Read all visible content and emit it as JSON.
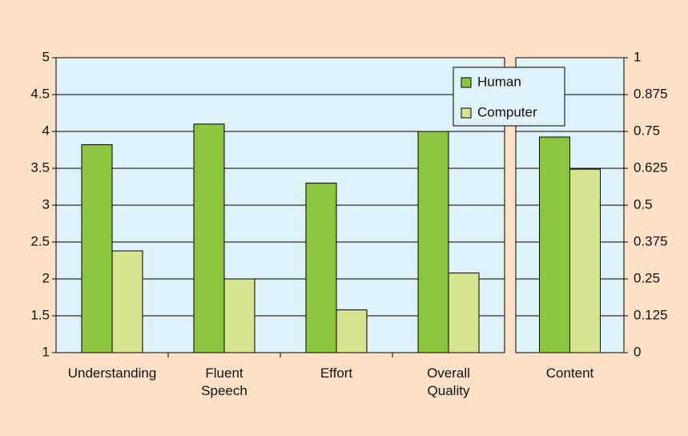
{
  "chart_data": {
    "type": "bar",
    "categories": [
      "Understanding",
      "Fluent Speech",
      "Effort",
      "Overall Quality"
    ],
    "series": [
      {
        "name": "Human",
        "color": "#8cc63f",
        "values": [
          3.82,
          4.1,
          3.3,
          4.0
        ]
      },
      {
        "name": "Computer",
        "color": "#d4e48f",
        "values": [
          2.38,
          2.0,
          1.58,
          2.08
        ]
      }
    ],
    "ylim": [
      1,
      5
    ],
    "yticks": [
      1,
      1.5,
      2,
      2.5,
      3,
      3.5,
      4,
      4.5,
      5
    ],
    "grid": true,
    "legend": "top-right",
    "content": {
      "category": "Content",
      "values": [
        0.731,
        0.622
      ],
      "y2lim": [
        0,
        1
      ],
      "y2ticks": [
        0,
        0.125,
        0.25,
        0.375,
        0.5,
        0.625,
        0.75,
        0.875,
        1
      ]
    }
  }
}
